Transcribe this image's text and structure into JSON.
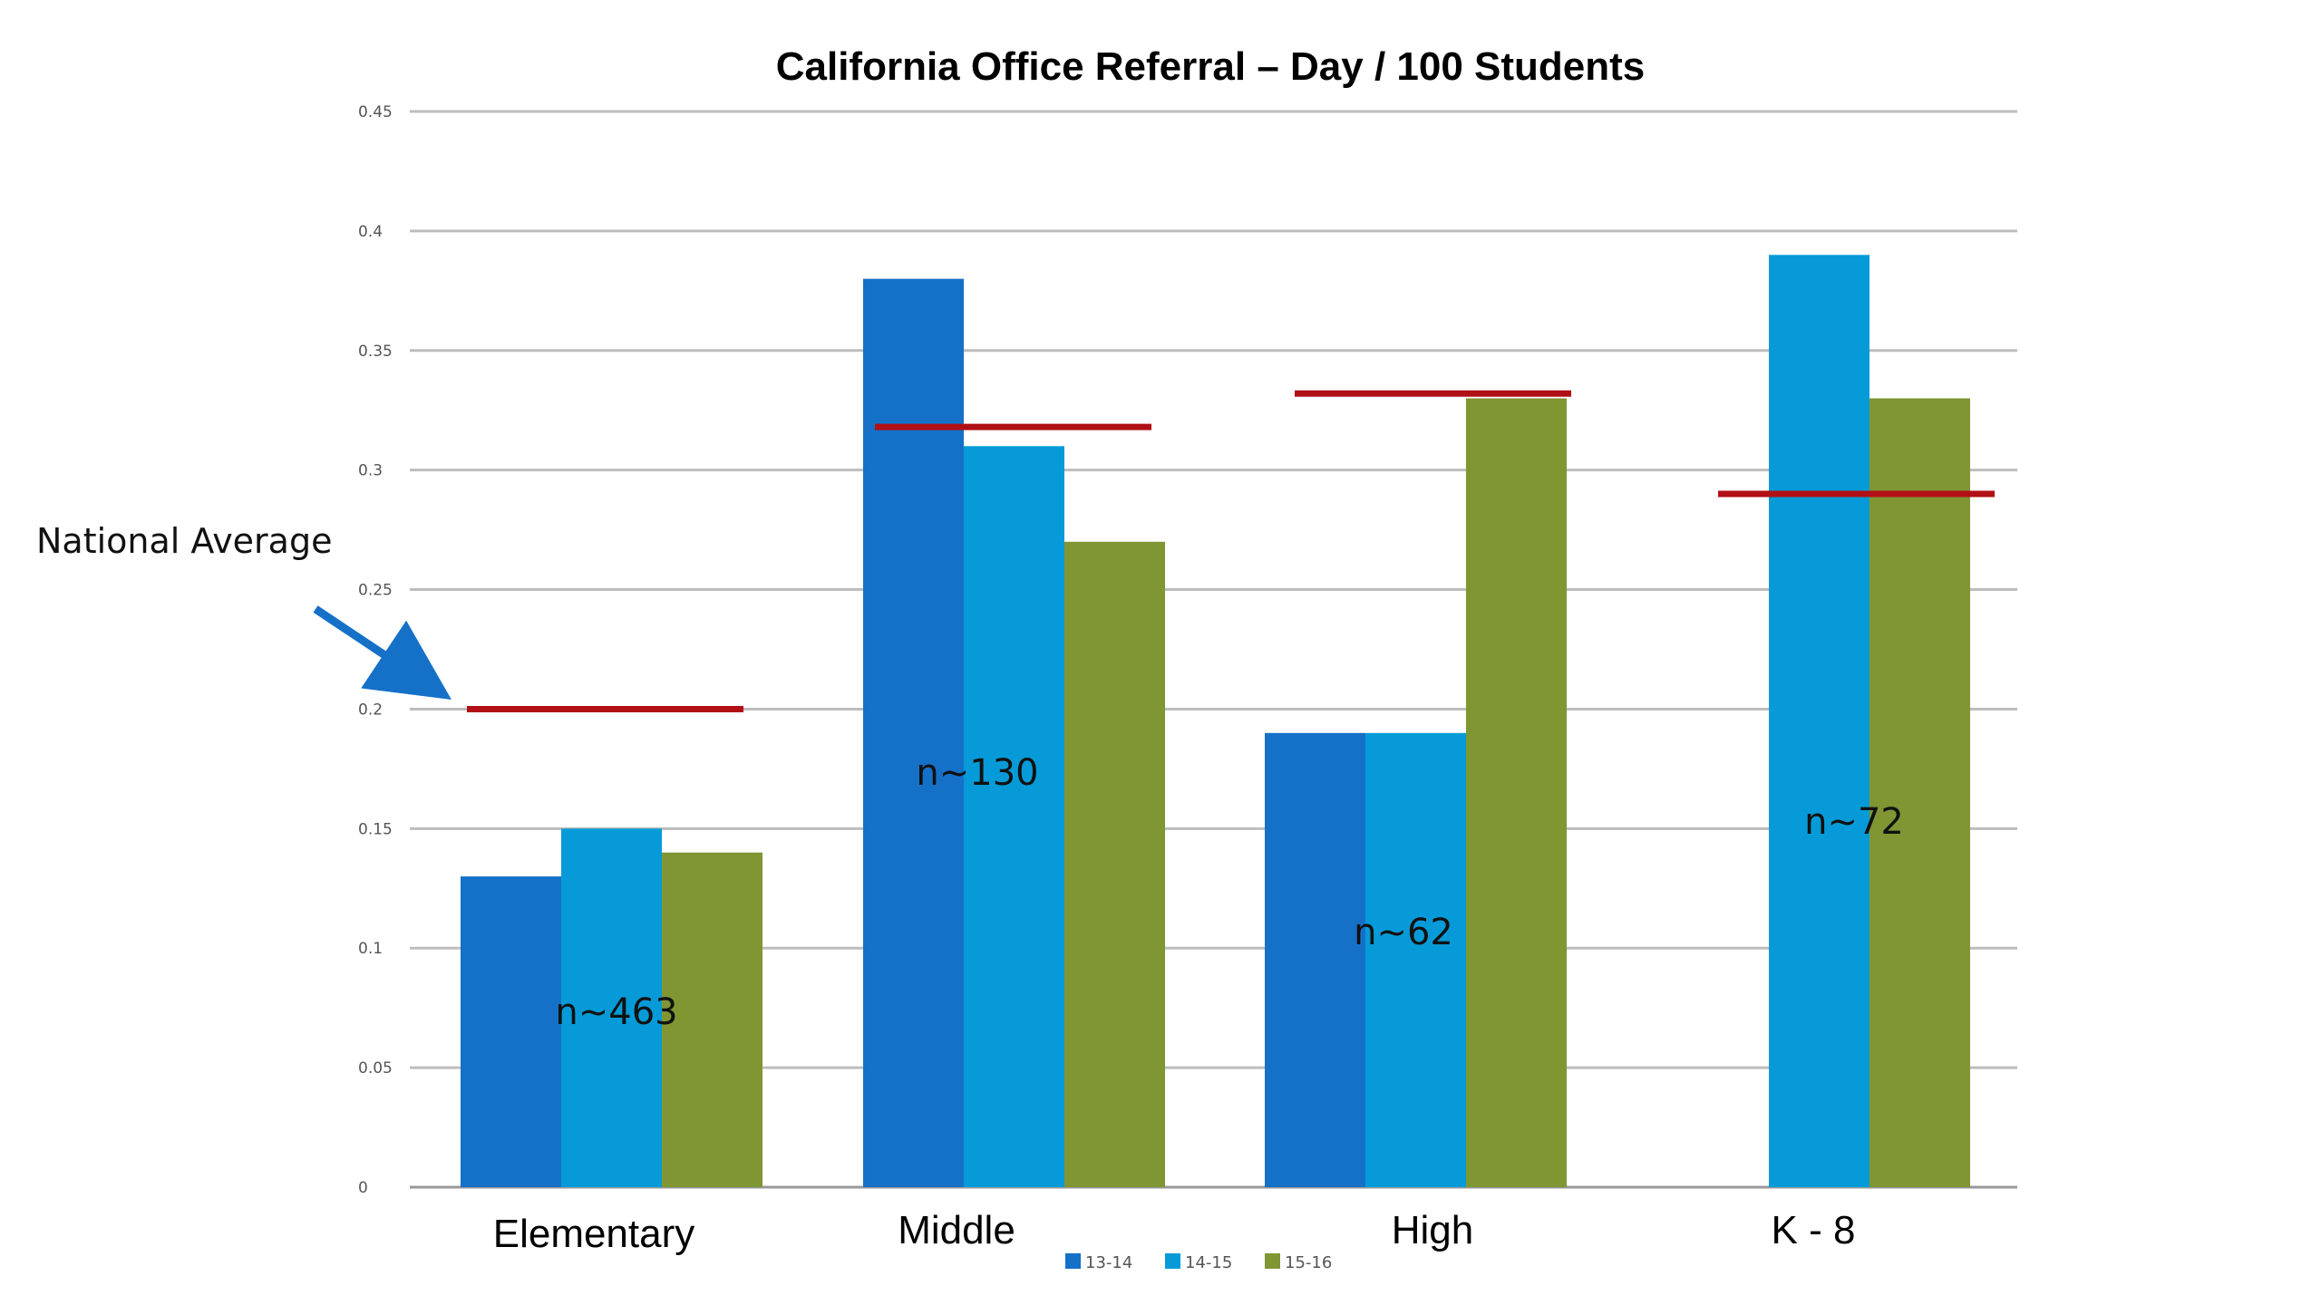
{
  "chart_data": {
    "type": "bar",
    "title": "California Office Referral – Day / 100 Students",
    "xlabel": "",
    "ylabel": "",
    "categories": [
      "Elementary",
      "Middle",
      "High",
      "K - 8"
    ],
    "series": [
      {
        "name": "13-14",
        "color": "#1570c8",
        "values": [
          0.13,
          0.38,
          0.19,
          null
        ]
      },
      {
        "name": "14-15",
        "color": "#069bd8",
        "values": [
          0.15,
          0.31,
          0.19,
          0.39
        ]
      },
      {
        "name": "15-16",
        "color": "#7f9633",
        "values": [
          0.14,
          0.27,
          0.33,
          0.33
        ]
      }
    ],
    "ylim": [
      0,
      0.45
    ],
    "yticks": [
      {
        "value": 0,
        "label": "0"
      },
      {
        "value": 0.05,
        "label": "0.05"
      },
      {
        "value": 0.1,
        "label": "0.1"
      },
      {
        "value": 0.15,
        "label": "0.15"
      },
      {
        "value": 0.2,
        "label": "0.2"
      },
      {
        "value": 0.25,
        "label": "0.25"
      },
      {
        "value": 0.3,
        "label": "0.3"
      },
      {
        "value": 0.35,
        "label": "0.35"
      },
      {
        "value": 0.4,
        "label": "0.4"
      },
      {
        "value": 0.45,
        "label": "0.45"
      }
    ],
    "grid": true,
    "legend_position": "bottom",
    "n_labels": [
      "n~463",
      "n~130",
      "n~62",
      "n~72"
    ],
    "national_average": {
      "label": "National Average",
      "color": "#b01016",
      "values": [
        0.2,
        0.318,
        0.332,
        0.29
      ]
    },
    "annotation_arrow_color": "#1570c8"
  }
}
